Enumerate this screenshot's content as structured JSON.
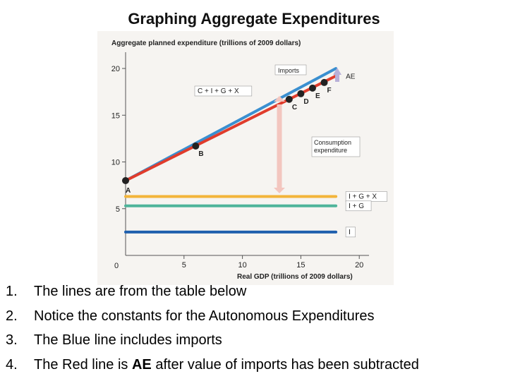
{
  "slide": {
    "title": "Graphing Aggregate Expenditures",
    "notes": [
      {
        "num": "1.",
        "text": "The lines are from the table below",
        "bold": ""
      },
      {
        "num": "2.",
        "text": "Notice the constants for the Autonomous Expenditures",
        "bold": ""
      },
      {
        "num": "3.",
        "text": "The Blue line includes imports",
        "bold": ""
      },
      {
        "num": "4.",
        "pre": "The Red line is ",
        "bold": "AE",
        "post": " after value of imports has been subtracted"
      }
    ]
  },
  "chart_data": {
    "type": "line",
    "ylabel": "Aggregate planned expenditure (trillions of 2009 dollars)",
    "xlabel": "Real GDP (trillions of 2009 dollars)",
    "xlim": [
      0,
      20
    ],
    "ylim": [
      0,
      20
    ],
    "x_ticks": [
      "5",
      "10",
      "15",
      "20"
    ],
    "y_ticks": [
      "5",
      "10",
      "15",
      "20"
    ],
    "origin_label": "0",
    "series": [
      {
        "name": "C + I + G + X",
        "color": "#3a8fd0",
        "points": [
          [
            0,
            8.0
          ],
          [
            18,
            20.0
          ]
        ]
      },
      {
        "name": "AE",
        "color": "#e03c2c",
        "points": [
          [
            0,
            8.0
          ],
          [
            18,
            19.2
          ]
        ]
      },
      {
        "name": "I + G + X",
        "color": "#f3b43a",
        "points": [
          [
            0,
            6.3
          ],
          [
            18,
            6.3
          ]
        ]
      },
      {
        "name": "I + G",
        "color": "#4fb49a",
        "points": [
          [
            0,
            5.3
          ],
          [
            18,
            5.3
          ]
        ]
      },
      {
        "name": "I",
        "color": "#1f5fae",
        "points": [
          [
            0,
            2.5
          ],
          [
            18,
            2.5
          ]
        ]
      }
    ],
    "points": [
      {
        "label": "A",
        "x": 0,
        "y": 8.0
      },
      {
        "label": "B",
        "x": 6,
        "y": 11.7
      },
      {
        "label": "C",
        "x": 14,
        "y": 16.7
      },
      {
        "label": "D",
        "x": 15,
        "y": 17.3
      },
      {
        "label": "E",
        "x": 16,
        "y": 17.9
      },
      {
        "label": "F",
        "x": 17,
        "y": 18.5
      }
    ],
    "annotations": [
      {
        "text": "Imports"
      },
      {
        "text": "Consumption expenditure"
      }
    ]
  }
}
